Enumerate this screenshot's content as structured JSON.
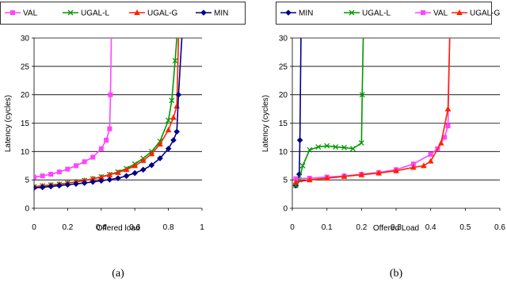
{
  "chart_data": [
    {
      "type": "line",
      "caption": "(a)",
      "xlabel": "Offered load",
      "ylabel": "Latency (cycles)",
      "xlim": [
        0,
        1
      ],
      "ylim": [
        0,
        30
      ],
      "xticks": [
        "0",
        "0.2",
        "0.4",
        "0.6",
        "0.8",
        "1"
      ],
      "yticks": [
        "0",
        "5",
        "10",
        "15",
        "20",
        "25",
        "30"
      ],
      "grid": "horizontal",
      "legend_position": "top",
      "series": [
        {
          "name": "VAL",
          "color": "#ff44ff",
          "marker": "square",
          "x": [
            0,
            0.05,
            0.1,
            0.15,
            0.2,
            0.25,
            0.3,
            0.35,
            0.4,
            0.43,
            0.45,
            0.455,
            0.46
          ],
          "y": [
            5.5,
            5.7,
            6.0,
            6.4,
            6.9,
            7.5,
            8.2,
            9.0,
            10.5,
            12.0,
            14.0,
            20.0,
            30.0
          ]
        },
        {
          "name": "UGAL-L",
          "color": "#009900",
          "marker": "x",
          "x": [
            0,
            0.05,
            0.1,
            0.15,
            0.2,
            0.25,
            0.3,
            0.35,
            0.4,
            0.45,
            0.5,
            0.55,
            0.6,
            0.65,
            0.7,
            0.75,
            0.8,
            0.82,
            0.84,
            0.85
          ],
          "y": [
            3.8,
            3.95,
            4.1,
            4.25,
            4.45,
            4.65,
            4.9,
            5.2,
            5.55,
            5.95,
            6.4,
            7.0,
            7.8,
            8.8,
            10.0,
            11.8,
            15.5,
            19.0,
            26.0,
            30.0
          ]
        },
        {
          "name": "UGAL-G",
          "color": "#ff2200",
          "marker": "triangle",
          "x": [
            0,
            0.05,
            0.1,
            0.15,
            0.2,
            0.25,
            0.3,
            0.35,
            0.4,
            0.45,
            0.5,
            0.55,
            0.6,
            0.65,
            0.7,
            0.75,
            0.8,
            0.83,
            0.85,
            0.86
          ],
          "y": [
            3.8,
            3.95,
            4.1,
            4.25,
            4.45,
            4.65,
            4.9,
            5.2,
            5.5,
            5.9,
            6.3,
            6.8,
            7.5,
            8.4,
            9.6,
            11.3,
            13.8,
            16.0,
            18.0,
            30.0
          ]
        },
        {
          "name": "MIN",
          "color": "#000088",
          "marker": "diamond",
          "x": [
            0,
            0.05,
            0.1,
            0.15,
            0.2,
            0.25,
            0.3,
            0.35,
            0.4,
            0.45,
            0.5,
            0.55,
            0.6,
            0.65,
            0.7,
            0.75,
            0.8,
            0.83,
            0.85,
            0.86,
            0.88
          ],
          "y": [
            3.6,
            3.7,
            3.85,
            4.0,
            4.15,
            4.3,
            4.45,
            4.65,
            4.85,
            5.05,
            5.3,
            5.7,
            6.2,
            6.8,
            7.6,
            8.8,
            10.5,
            12.0,
            13.5,
            20.0,
            30.0
          ]
        }
      ]
    },
    {
      "type": "line",
      "caption": "(b)",
      "xlabel": "Offered Load",
      "ylabel": "Latency (cycles)",
      "xlim": [
        0,
        0.6
      ],
      "ylim": [
        0,
        30
      ],
      "xticks": [
        "0",
        "0.1",
        "0.2",
        "0.3",
        "0.4",
        "0.5",
        "0.6"
      ],
      "yticks": [
        "0",
        "5",
        "10",
        "15",
        "20",
        "25",
        "30"
      ],
      "grid": "horizontal",
      "legend_position": "top",
      "series": [
        {
          "name": "MIN",
          "color": "#000088",
          "marker": "diamond",
          "x": [
            0.01,
            0.015,
            0.02,
            0.022,
            0.025
          ],
          "y": [
            4.0,
            4.8,
            6.0,
            12.0,
            30.0
          ]
        },
        {
          "name": "UGAL-L",
          "color": "#009900",
          "marker": "x",
          "x": [
            0.01,
            0.02,
            0.03,
            0.05,
            0.075,
            0.1,
            0.125,
            0.15,
            0.175,
            0.2,
            0.202,
            0.205
          ],
          "y": [
            4.0,
            5.0,
            7.5,
            10.3,
            10.8,
            11.0,
            10.8,
            10.7,
            10.5,
            11.5,
            20.0,
            30.0
          ]
        },
        {
          "name": "VAL",
          "color": "#ff44ff",
          "marker": "square",
          "x": [
            0.01,
            0.05,
            0.1,
            0.15,
            0.2,
            0.25,
            0.3,
            0.35,
            0.4,
            0.42,
            0.44,
            0.45,
            0.455
          ],
          "y": [
            5.2,
            5.3,
            5.5,
            5.7,
            6.0,
            6.3,
            6.8,
            7.8,
            9.5,
            10.5,
            12.5,
            14.5,
            30.0
          ]
        },
        {
          "name": "UGAL-G",
          "color": "#ff2200",
          "marker": "triangle",
          "x": [
            0.01,
            0.05,
            0.1,
            0.15,
            0.2,
            0.25,
            0.3,
            0.35,
            0.38,
            0.4,
            0.43,
            0.45,
            0.455
          ],
          "y": [
            4.6,
            5.0,
            5.3,
            5.6,
            5.9,
            6.2,
            6.6,
            7.2,
            7.5,
            8.3,
            11.5,
            17.5,
            30.0
          ]
        }
      ]
    }
  ]
}
